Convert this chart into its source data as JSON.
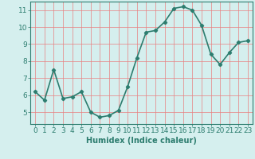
{
  "x": [
    0,
    1,
    2,
    3,
    4,
    5,
    6,
    7,
    8,
    9,
    10,
    11,
    12,
    13,
    14,
    15,
    16,
    17,
    18,
    19,
    20,
    21,
    22,
    23
  ],
  "y": [
    6.2,
    5.7,
    7.5,
    5.8,
    5.9,
    6.2,
    5.0,
    4.7,
    4.8,
    5.1,
    6.5,
    8.2,
    9.7,
    9.8,
    10.3,
    11.1,
    11.2,
    11.0,
    10.1,
    8.4,
    7.8,
    8.5,
    9.1,
    9.2
  ],
  "line_color": "#2d7d6f",
  "marker": "D",
  "markersize": 2.2,
  "linewidth": 1.2,
  "bg_color": "#d5efee",
  "grid_color": "#e88080",
  "xlabel": "Humidex (Indice chaleur)",
  "xlim": [
    -0.5,
    23.5
  ],
  "ylim": [
    4.3,
    11.5
  ],
  "yticks": [
    5,
    6,
    7,
    8,
    9,
    10,
    11
  ],
  "xticks": [
    0,
    1,
    2,
    3,
    4,
    5,
    6,
    7,
    8,
    9,
    10,
    11,
    12,
    13,
    14,
    15,
    16,
    17,
    18,
    19,
    20,
    21,
    22,
    23
  ],
  "axis_fontsize": 7,
  "tick_fontsize": 6.5
}
